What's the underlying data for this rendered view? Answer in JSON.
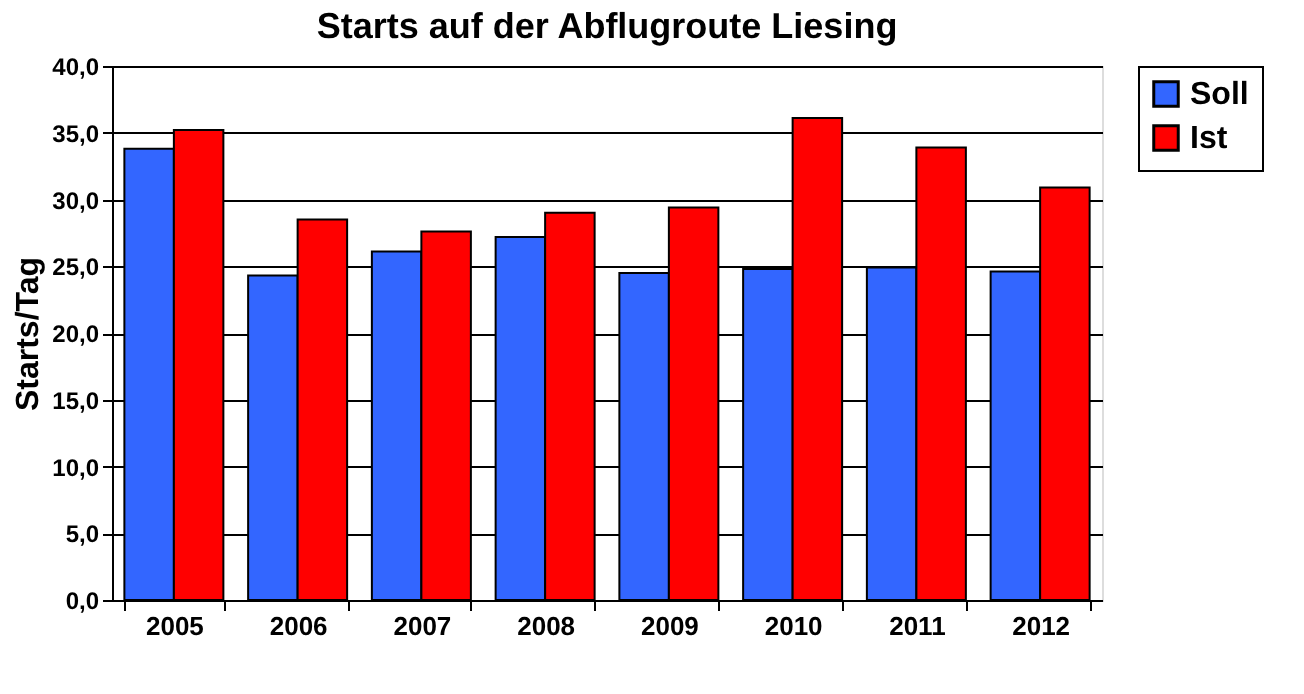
{
  "chart_data": {
    "type": "bar",
    "title": "Starts auf der Abflugroute Liesing",
    "ylabel": "Starts/Tag",
    "categories": [
      "2005",
      "2006",
      "2007",
      "2008",
      "2009",
      "2010",
      "2011",
      "2012"
    ],
    "series": [
      {
        "name": "Soll",
        "color": "#3366ff",
        "values": [
          33.8,
          24.3,
          26.1,
          27.2,
          24.5,
          24.8,
          24.9,
          24.6
        ]
      },
      {
        "name": "Ist",
        "color": "#ff0000",
        "values": [
          35.2,
          28.5,
          27.6,
          29.0,
          29.4,
          36.1,
          33.9,
          30.9
        ]
      }
    ],
    "ylim": [
      0,
      40
    ],
    "yticks": [
      {
        "value": 0,
        "label": "0,0"
      },
      {
        "value": 5,
        "label": "5,0"
      },
      {
        "value": 10,
        "label": "10,0"
      },
      {
        "value": 15,
        "label": "15,0"
      },
      {
        "value": 20,
        "label": "20,0"
      },
      {
        "value": 25,
        "label": "25,0"
      },
      {
        "value": 30,
        "label": "30,0"
      },
      {
        "value": 35,
        "label": "35,0"
      },
      {
        "value": 40,
        "label": "40,0"
      }
    ],
    "grid": "y",
    "legend": "right"
  }
}
